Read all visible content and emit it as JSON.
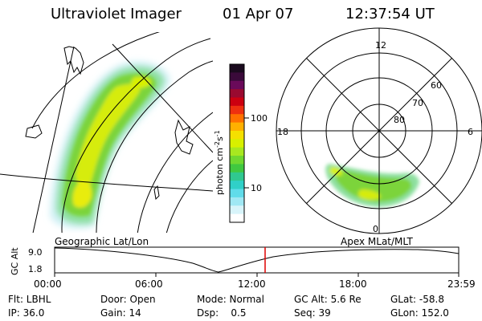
{
  "header": {
    "instrument": "Ultraviolet Imager",
    "date": "01 Apr 07",
    "time": "12:37:54 UT"
  },
  "left_panel": {
    "caption": "Geographic Lat/Lon"
  },
  "colorbar": {
    "unit_label": "photon cm",
    "unit_sup1": "-2",
    "unit_mid": "s",
    "unit_sup2": "-1",
    "ticks": [
      "100",
      "10"
    ],
    "colors": [
      "#1a0a1e",
      "#3a0a3a",
      "#6a0a5a",
      "#9a0a30",
      "#cc0010",
      "#ee3010",
      "#ff7000",
      "#ffb000",
      "#f5e000",
      "#d8f000",
      "#a8e820",
      "#70d830",
      "#40c840",
      "#30c890",
      "#30d0c8",
      "#60dcea",
      "#a0e8f4",
      "#d8f4fa",
      "#ffffff"
    ]
  },
  "right_panel": {
    "caption": "Apex MLat/MLT",
    "mlt_labels": {
      "top": "12",
      "bottom": "0",
      "left": "18",
      "right": "6"
    },
    "lat_labels": [
      "60",
      "70",
      "80"
    ]
  },
  "altitude_plot": {
    "ylabel": "GC Alt",
    "y_ticks": [
      "9.0",
      "1.8"
    ],
    "x_ticks": [
      "00:00",
      "06:00",
      "12:00",
      "18:00",
      "23:59"
    ],
    "cursor_color": "#dd0000",
    "cursor_time": "12:37"
  },
  "footer": {
    "col1": [
      "Flt: LBHL",
      "IP: 36.0"
    ],
    "col2": [
      "Door: Open",
      "Gain: 14"
    ],
    "col3": [
      "Mode: Normal",
      "Dsp:    0.5"
    ],
    "col4": [
      "GC Alt: 5.6 Re",
      "Seq: 39"
    ],
    "col5": [
      "GLat: -58.8",
      "GLon: 152.0"
    ]
  }
}
